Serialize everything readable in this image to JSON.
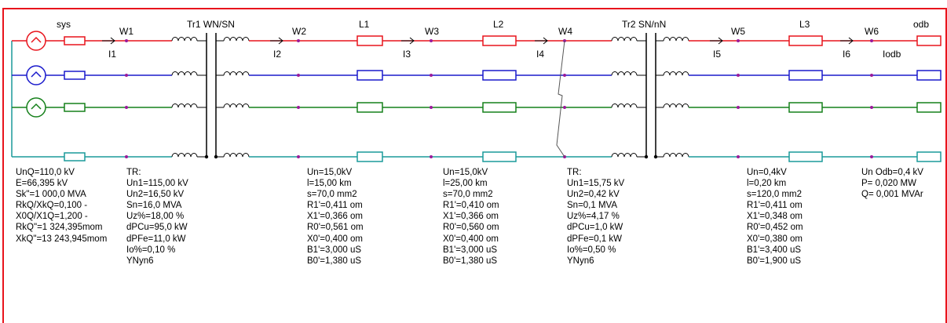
{
  "colors": {
    "frame": "#e8141c",
    "phase_a": "#e8141c",
    "phase_b": "#1a1acc",
    "phase_c": "#15801a",
    "neutral": "#1a9a9a",
    "node": "#9a1a9a",
    "ground": "#000000",
    "fault": "#555555"
  },
  "top_labels": {
    "sys": "sys",
    "tr1": "Tr1 WN/SN",
    "l1": "L1",
    "l2": "L2",
    "tr2": "Tr2 SN/nN",
    "l3": "L3",
    "odb": "odb"
  },
  "node_labels": {
    "w1": "W1",
    "w2": "W2",
    "w3": "W3",
    "w4": "W4",
    "w5": "W5",
    "w6": "W6"
  },
  "current_labels": {
    "i1": "I1",
    "i2": "I2",
    "i3": "I3",
    "i4": "I4",
    "i5": "I5",
    "i6": "I6",
    "iodb": "Iodb"
  },
  "params": {
    "source": [
      "UnQ=110,0 kV",
      "E=66,395 kV",
      "Sk\"=1 000,0 MVA",
      "RkQ/XkQ=0,100 -",
      "X0Q/X1Q=1,200 -",
      "RkQ\"=1 324,395mom",
      "XkQ\"=13 243,945mom"
    ],
    "tr1": [
      "TR:",
      "Un1=115,00 kV",
      "Un2=16,50 kV",
      "Sn=16,0 MVA",
      "Uz%=18,00 %",
      "dPCu=95,0 kW",
      "dPFe=11,0 kW",
      "Io%=0,10 %",
      "YNyn6"
    ],
    "l1": [
      "Un=15,0kV",
      "l=15,00 km",
      "s=70,0 mm2",
      "R1'=0,411 om",
      "X1'=0,366 om",
      "R0'=0,561 om",
      "X0'=0,400 om",
      "B1'=3,000 uS",
      "B0'=1,380 uS"
    ],
    "l2": [
      "Un=15,0kV",
      "l=25,00 km",
      "s=70,0 mm2",
      "R1'=0,410 om",
      "X1'=0,366 om",
      "R0'=0,560 om",
      "X0'=0,400 om",
      "B1'=3,000 uS",
      "B0'=1,380 uS"
    ],
    "tr2": [
      "TR:",
      "Un1=15,75 kV",
      "Un2=0,42 kV",
      "Sn=0,1 MVA",
      "Uz%=4,17 %",
      "dPCu=1,0 kW",
      "dPFe=0,1 kW",
      "Io%=0,50 %",
      "YNyn6"
    ],
    "l3": [
      "Un=0,4kV",
      "l=0,20 km",
      "s=120,0 mm2",
      "R1'=0,411 om",
      "X1'=0,348 om",
      "R0'=0,452 om",
      "X0'=0,380 om",
      "B1'=3,400 uS",
      "B0'=1,900 uS"
    ],
    "load": [
      "Un Odb=0,4 kV",
      "P= 0,020 MW",
      "Q= 0,001 MVAr"
    ]
  }
}
